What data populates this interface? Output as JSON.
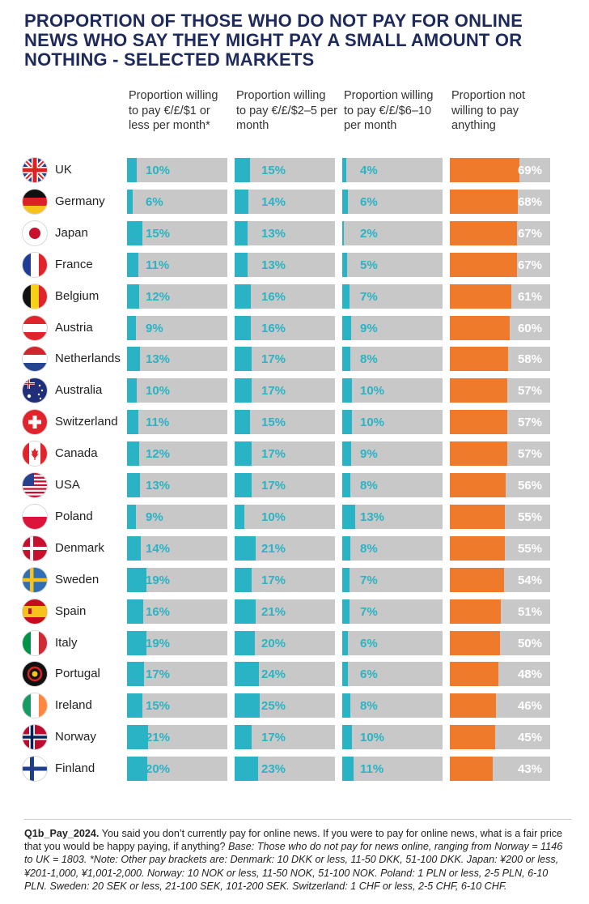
{
  "title": "PROPORTION OF THOSE WHO DO NOT PAY FOR ONLINE NEWS WHO SAY THEY MIGHT PAY A SMALL AMOUNT OR NOTHING - SELECTED MARKETS",
  "column_headers": [
    "Proportion willing to pay €/£/$1 or less per month*",
    "Proportion willing to pay €/£/$2–5 per month",
    "Proportion willing to pay €/£/$6–10 per month",
    "Proportion not willing to pay anything"
  ],
  "colors": {
    "teal": "#2ab3c4",
    "orange": "#f07a2b",
    "track": "#c8c8c8",
    "title": "#1d2a5b"
  },
  "chart_data": {
    "type": "bar",
    "orientation": "horizontal",
    "categories": [
      "UK",
      "Germany",
      "Japan",
      "France",
      "Belgium",
      "Austria",
      "Netherlands",
      "Australia",
      "Switzerland",
      "Canada",
      "USA",
      "Poland",
      "Denmark",
      "Sweden",
      "Spain",
      "Italy",
      "Portugal",
      "Ireland",
      "Norway",
      "Finland"
    ],
    "series": [
      {
        "name": "Proportion willing to pay €/£/$1 or less per month*",
        "values": [
          10,
          6,
          15,
          11,
          12,
          9,
          13,
          10,
          11,
          12,
          13,
          9,
          14,
          19,
          16,
          19,
          17,
          15,
          21,
          20
        ]
      },
      {
        "name": "Proportion willing to pay €/£/$2–5 per month",
        "values": [
          15,
          14,
          13,
          13,
          16,
          16,
          17,
          17,
          15,
          17,
          17,
          10,
          21,
          17,
          21,
          20,
          24,
          25,
          17,
          23
        ]
      },
      {
        "name": "Proportion willing to pay €/£/$6–10 per month",
        "values": [
          4,
          6,
          2,
          5,
          7,
          9,
          8,
          10,
          10,
          9,
          8,
          13,
          8,
          7,
          7,
          6,
          6,
          8,
          10,
          11
        ]
      },
      {
        "name": "Proportion not willing to pay anything",
        "values": [
          69,
          68,
          67,
          67,
          61,
          60,
          58,
          57,
          57,
          57,
          56,
          55,
          55,
          54,
          51,
          50,
          48,
          46,
          45,
          43
        ]
      }
    ],
    "value_suffix": "%",
    "xlim": [
      0,
      100
    ]
  },
  "flags": [
    "uk-flag",
    "germany-flag",
    "japan-flag",
    "france-flag",
    "belgium-flag",
    "austria-flag",
    "netherlands-flag",
    "australia-flag",
    "switzerland-flag",
    "canada-flag",
    "usa-flag",
    "poland-flag",
    "denmark-flag",
    "sweden-flag",
    "spain-flag",
    "italy-flag",
    "portugal-flag",
    "ireland-flag",
    "norway-flag",
    "finland-flag"
  ],
  "footnote": {
    "code": "Q1b_Pay_2024.",
    "question": " You said you don’t currently pay for online news. If you were to pay for online news, what is a fair price that you would be happy paying, if anything?",
    "base": " Base: Those who do not pay for news online, ranging from Norway = 1146 to UK = 1803. *Note: Other pay brackets are: Denmark: 10 DKK or less, 11-50 DKK, 51-100 DKK. Japan: ¥200 or less, ¥201-1,000, ¥1,001-2,000. Norway: 10 NOK or less, 11-50 NOK, 51-100 NOK. Poland: 1 PLN or less, 2-5 PLN, 6-10 PLN. Sweden: 20 SEK or less, 21-100 SEK, 101-200 SEK. Switzerland: 1 CHF or less, 2-5 CHF, 6-10 CHF."
  }
}
